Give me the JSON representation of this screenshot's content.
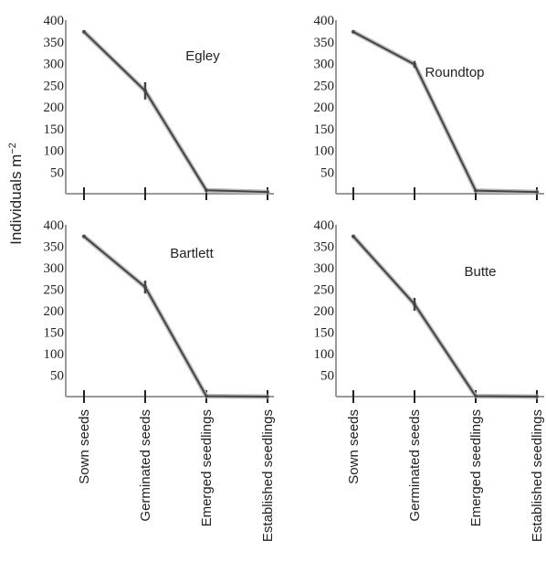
{
  "ylabel_text": "Individuals m",
  "ylabel_sup": "−2",
  "chart_data": [
    {
      "type": "line",
      "title": "Egley",
      "categories": [
        "Sown seeds",
        "Germinated seeds",
        "Emerged seedlings",
        "Established seedlings"
      ],
      "values": [
        373,
        237,
        8,
        4
      ],
      "error": [
        0,
        20,
        3,
        0
      ],
      "yticks": [
        50,
        100,
        150,
        200,
        250,
        300,
        350,
        400
      ],
      "ylim": [
        0,
        400
      ],
      "show_category_labels": false
    },
    {
      "type": "line",
      "title": "Roundtop",
      "categories": [
        "Sown seeds",
        "Germinated seeds",
        "Emerged seedlings",
        "Established seedlings"
      ],
      "values": [
        373,
        298,
        7,
        4
      ],
      "error": [
        0,
        8,
        3,
        0
      ],
      "yticks": [
        50,
        100,
        150,
        200,
        250,
        300,
        350,
        400
      ],
      "ylim": [
        0,
        400
      ],
      "show_category_labels": false
    },
    {
      "type": "line",
      "title": "Bartlett",
      "categories": [
        "Sown seeds",
        "Germinated seeds",
        "Emerged seedlings",
        "Established seedlings"
      ],
      "values": [
        373,
        255,
        1,
        0
      ],
      "error": [
        0,
        15,
        0,
        0
      ],
      "yticks": [
        50,
        100,
        150,
        200,
        250,
        300,
        350,
        400
      ],
      "ylim": [
        0,
        400
      ],
      "show_category_labels": true
    },
    {
      "type": "line",
      "title": "Butte",
      "categories": [
        "Sown seeds",
        "Germinated seeds",
        "Emerged seedlings",
        "Established seedlings"
      ],
      "values": [
        373,
        215,
        1,
        0
      ],
      "error": [
        0,
        15,
        0,
        0
      ],
      "yticks": [
        50,
        100,
        150,
        200,
        250,
        300,
        350,
        400
      ],
      "ylim": [
        0,
        400
      ],
      "show_category_labels": true
    }
  ]
}
